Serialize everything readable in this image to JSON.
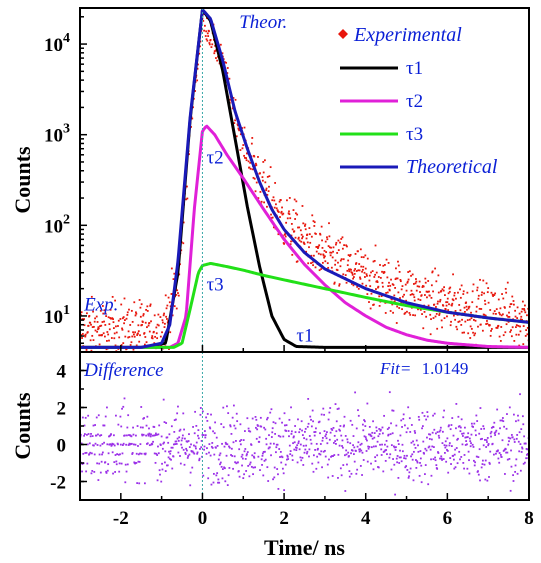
{
  "chart_data": [
    {
      "type": "line",
      "ylabel": "Counts",
      "yscale": "log",
      "xlim": [
        -3,
        8
      ],
      "ylim": [
        4,
        25000
      ],
      "y_ticks": [
        {
          "value": 10,
          "base": "10",
          "exp": "1"
        },
        {
          "value": 100,
          "base": "10",
          "exp": "2"
        },
        {
          "value": 1000,
          "base": "10",
          "exp": "3"
        },
        {
          "value": 10000,
          "base": "10",
          "exp": "4"
        }
      ],
      "legend": {
        "placement": "top-right",
        "entries": [
          {
            "label": "Experimental",
            "color": "#e8160c",
            "marker": "diamond"
          },
          {
            "label": "τ1",
            "color": "#000000"
          },
          {
            "label": "τ2",
            "color": "#e020d8"
          },
          {
            "label": "τ3",
            "color": "#22e018"
          },
          {
            "label": "Theoretical",
            "color": "#1a1ab8"
          }
        ]
      },
      "annotations": [
        {
          "text": "Theor.",
          "x": 0.9,
          "y": 15000
        },
        {
          "text": "τ2",
          "x": 0.1,
          "y": 480
        },
        {
          "text": "τ3",
          "x": 0.1,
          "y": 19
        },
        {
          "text": "τ1",
          "x": 2.3,
          "y": 5.2
        },
        {
          "text": "Exp.",
          "x": -2.9,
          "y": 11.5
        }
      ],
      "series": [
        {
          "name": "τ1",
          "color": "#000000",
          "x": [
            -3,
            -1.5,
            -0.9,
            -0.6,
            -0.3,
            0,
            0.2,
            0.5,
            0.8,
            1.1,
            1.4,
            1.7,
            2.0,
            2.3,
            3.0,
            8
          ],
          "y": [
            4.5,
            4.5,
            5,
            30,
            1500,
            24000,
            18000,
            5000,
            900,
            160,
            35,
            10,
            5.5,
            4.6,
            4.5,
            4.5
          ]
        },
        {
          "name": "τ2",
          "color": "#e020d8",
          "x": [
            -3,
            -0.8,
            -0.6,
            -0.4,
            -0.2,
            0,
            0.1,
            0.3,
            0.6,
            1.0,
            1.5,
            2.0,
            2.5,
            3.0,
            3.5,
            4.0,
            4.5,
            5.0,
            5.5,
            6.0,
            7.0,
            8
          ],
          "y": [
            4.5,
            4.5,
            5,
            10,
            150,
            1100,
            1250,
            1000,
            600,
            330,
            150,
            70,
            37,
            22,
            14,
            10,
            7.5,
            6.2,
            5.4,
            5.0,
            4.6,
            4.5
          ]
        },
        {
          "name": "τ3",
          "color": "#22e018",
          "x": [
            -3,
            -0.7,
            -0.5,
            -0.3,
            -0.1,
            0,
            0.2,
            0.6,
            1.0,
            1.5,
            2.0,
            3.0,
            4.0,
            5.0,
            6.0,
            7.0,
            8
          ],
          "y": [
            4.5,
            4.5,
            5,
            12,
            30,
            36,
            38,
            35,
            32,
            28,
            25,
            20,
            16,
            13,
            11,
            9.5,
            8.5
          ]
        },
        {
          "name": "Theoretical",
          "color": "#1a1ab8",
          "x": [
            -3,
            -1.5,
            -1.0,
            -0.8,
            -0.6,
            -0.3,
            0,
            0.2,
            0.5,
            0.8,
            1.1,
            1.4,
            1.7,
            2.0,
            2.5,
            3.0,
            4.0,
            5.0,
            6.0,
            7.0,
            8
          ],
          "y": [
            4.5,
            4.5,
            5,
            8,
            40,
            1600,
            24000,
            19000,
            6500,
            1800,
            700,
            300,
            150,
            90,
            50,
            33,
            20,
            14,
            11,
            9.5,
            8.5
          ]
        }
      ],
      "experimental_envelope": {
        "x": [
          -3,
          -1,
          -0.6,
          -0.3,
          0,
          0.5,
          1,
          1.5,
          2,
          3,
          4,
          5,
          6,
          7,
          8
        ],
        "y": [
          7,
          7,
          20,
          1200,
          20000,
          6000,
          800,
          250,
          110,
          45,
          26,
          18,
          13,
          11,
          9.5
        ]
      }
    },
    {
      "type": "scatter",
      "xlabel": "Time/ ns",
      "ylabel": "Counts",
      "xlim": [
        -3,
        8
      ],
      "ylim": [
        -3,
        5
      ],
      "x_ticks": [
        "-2",
        "0",
        "2",
        "4",
        "6",
        "8"
      ],
      "y_ticks": [
        "-2",
        "0",
        "2",
        "4"
      ],
      "annotation": "Difference",
      "fit_label": "Fit=",
      "fit_value": "1.0149",
      "series": [
        {
          "name": "Difference",
          "color": "#9b30e8"
        }
      ]
    }
  ]
}
